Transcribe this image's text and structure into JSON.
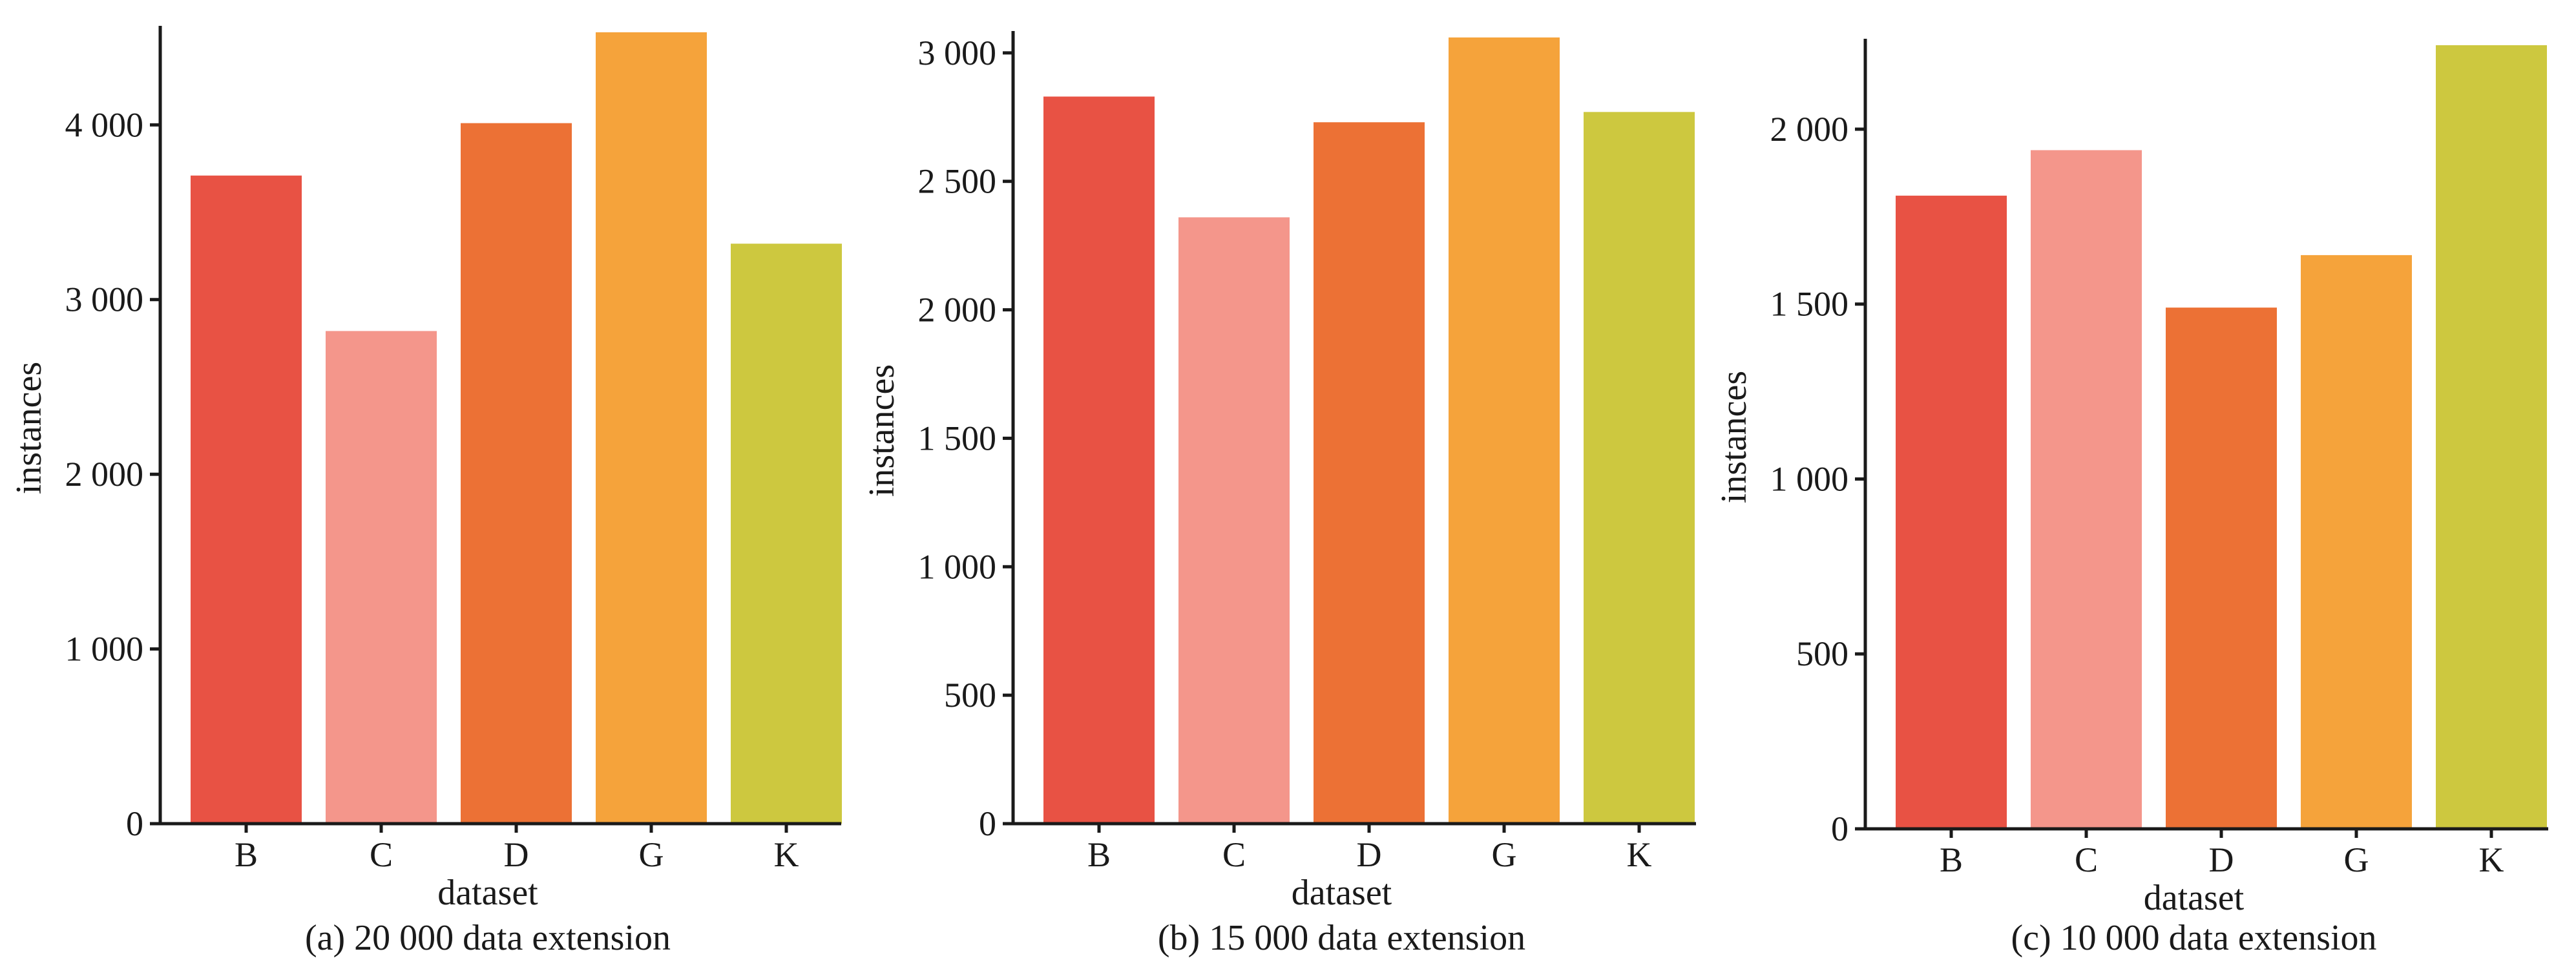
{
  "colors": {
    "B": "#e85244",
    "C": "#f4968b",
    "D": "#ec7135",
    "G": "#f5a33b",
    "K": "#cdc83f",
    "axis": "#1a1a1a"
  },
  "chart_data": [
    {
      "type": "bar",
      "caption": "(a)  20 000 data extension",
      "xlabel": "dataset",
      "ylabel": "instances",
      "categories": [
        "B",
        "C",
        "D",
        "G",
        "K"
      ],
      "values": [
        3710,
        2820,
        4010,
        4530,
        3320
      ],
      "ylim": [
        0,
        4530
      ],
      "yticks": [
        0,
        1000,
        2000,
        3000,
        4000
      ],
      "ytick_labels": [
        "0",
        "1 000",
        "2 000",
        "3 000",
        "4 000"
      ],
      "grid": false,
      "legend": "none"
    },
    {
      "type": "bar",
      "caption": "(b)  15 000 data extension",
      "xlabel": "dataset",
      "ylabel": "instances",
      "categories": [
        "B",
        "C",
        "D",
        "G",
        "K"
      ],
      "values": [
        2830,
        2360,
        2730,
        3060,
        2770
      ],
      "ylim": [
        0,
        3060
      ],
      "yticks": [
        0,
        500,
        1000,
        1500,
        2000,
        2500,
        3000
      ],
      "ytick_labels": [
        "0",
        "500",
        "1 000",
        "1 500",
        "2 000",
        "2 500",
        "3 000"
      ],
      "grid": false,
      "legend": "none"
    },
    {
      "type": "bar",
      "caption": "(c)  10 000 data extension",
      "xlabel": "dataset",
      "ylabel": "instances",
      "categories": [
        "B",
        "C",
        "D",
        "G",
        "K"
      ],
      "values": [
        1810,
        1940,
        1490,
        1640,
        2240
      ],
      "ylim": [
        0,
        2240
      ],
      "yticks": [
        0,
        500,
        1000,
        1500,
        2000
      ],
      "ytick_labels": [
        "0",
        "500",
        "1 000",
        "1 500",
        "2 000"
      ],
      "grid": false,
      "legend": "none"
    }
  ]
}
